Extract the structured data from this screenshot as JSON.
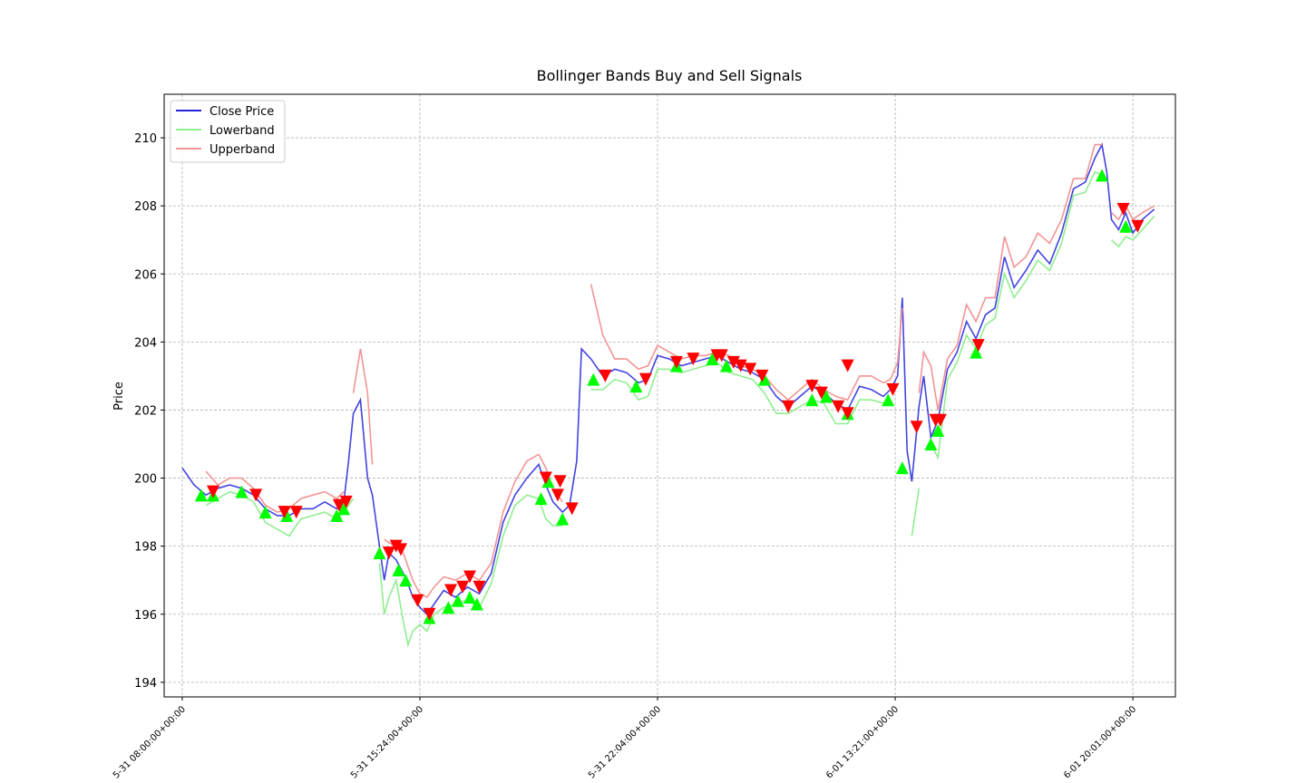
{
  "chart_data": {
    "type": "line",
    "title": "Bollinger Bands Buy and Sell Signals",
    "y_label": "Price",
    "x": [
      0,
      5,
      10,
      15,
      20,
      25,
      30,
      35,
      40,
      45,
      50,
      55,
      60,
      65,
      68,
      70,
      72,
      75,
      78,
      80,
      83,
      85,
      87,
      90,
      93,
      95,
      97,
      100,
      103,
      106,
      110,
      115,
      120,
      125,
      130,
      135,
      140,
      145,
      150,
      153,
      156,
      160,
      163,
      166,
      168,
      172,
      177,
      182,
      187,
      192,
      196,
      200,
      205,
      210,
      215,
      220,
      225,
      230,
      235,
      240,
      245,
      250,
      255,
      260,
      265,
      270,
      275,
      280,
      285,
      290,
      295,
      298,
      301,
      303,
      305,
      307,
      310,
      312,
      315,
      318,
      322,
      326,
      330,
      334,
      338,
      342,
      346,
      350,
      355,
      360,
      365,
      370,
      375,
      380,
      384,
      387,
      389,
      391,
      394,
      397,
      400,
      404,
      409
    ],
    "series": [
      {
        "name": "Close Price",
        "color": "#2222dd",
        "values": [
          200.3,
          199.8,
          199.5,
          199.7,
          199.8,
          199.7,
          199.5,
          199.1,
          198.9,
          198.9,
          199.1,
          199.1,
          199.3,
          199.1,
          199.3,
          200.5,
          201.9,
          202.3,
          200.0,
          199.5,
          198.0,
          197.0,
          197.8,
          197.6,
          197.2,
          196.9,
          196.5,
          196.2,
          196.0,
          196.3,
          196.7,
          196.5,
          196.8,
          196.6,
          197.2,
          198.7,
          199.5,
          200.0,
          200.4,
          199.8,
          199.3,
          199.0,
          199.2,
          200.5,
          203.8,
          203.5,
          203.0,
          203.2,
          203.1,
          202.8,
          202.9,
          203.6,
          203.5,
          203.3,
          203.4,
          203.5,
          203.6,
          203.4,
          203.2,
          203.1,
          202.9,
          202.4,
          202.1,
          202.4,
          202.7,
          202.5,
          202.2,
          202.0,
          202.7,
          202.6,
          202.4,
          202.6,
          203.0,
          205.3,
          200.8,
          199.9,
          202.1,
          203.0,
          201.2,
          201.7,
          203.2,
          203.7,
          204.6,
          204.1,
          204.8,
          205.0,
          206.5,
          205.6,
          206.1,
          206.7,
          206.3,
          207.2,
          208.5,
          208.7,
          209.4,
          209.8,
          209.0,
          207.6,
          207.3,
          207.8,
          207.2,
          207.6,
          207.9
        ]
      },
      {
        "name": "Lowerband",
        "color": "#90ee90",
        "values": [
          null,
          null,
          199.2,
          199.4,
          199.6,
          199.5,
          199.3,
          198.7,
          198.5,
          198.3,
          198.8,
          198.9,
          199.0,
          198.8,
          199.0,
          199.2,
          199.4,
          null,
          null,
          null,
          197.5,
          196.0,
          196.5,
          197.0,
          195.8,
          195.1,
          195.5,
          195.7,
          195.5,
          196.0,
          196.2,
          196.3,
          196.4,
          196.2,
          196.9,
          198.3,
          199.2,
          199.5,
          199.4,
          198.8,
          198.6,
          198.6,
          null,
          null,
          null,
          202.6,
          202.6,
          202.9,
          202.8,
          202.3,
          202.4,
          203.2,
          203.2,
          203.1,
          203.2,
          203.3,
          203.4,
          203.1,
          203.0,
          202.9,
          202.5,
          201.9,
          201.9,
          202.1,
          202.3,
          202.2,
          201.6,
          201.6,
          202.3,
          202.3,
          202.2,
          202.3,
          null,
          null,
          null,
          198.3,
          199.7,
          null,
          201.0,
          200.6,
          202.9,
          203.4,
          204.2,
          203.8,
          204.5,
          204.7,
          206.0,
          205.3,
          205.8,
          206.4,
          206.1,
          206.9,
          208.3,
          208.4,
          209.0,
          208.9,
          null,
          207.0,
          206.8,
          207.1,
          207.0,
          207.3,
          207.7
        ]
      },
      {
        "name": "Upperband",
        "color": "#f49494",
        "values": [
          null,
          null,
          200.2,
          199.8,
          200.0,
          200.0,
          199.7,
          199.2,
          199.0,
          199.1,
          199.4,
          199.5,
          199.6,
          199.4,
          199.6,
          null,
          202.5,
          203.8,
          202.5,
          200.4,
          null,
          198.2,
          198.1,
          198.0,
          197.8,
          197.4,
          197.0,
          196.6,
          196.5,
          196.8,
          197.1,
          197.0,
          197.2,
          197.0,
          197.5,
          199.0,
          199.9,
          200.5,
          200.7,
          200.3,
          199.7,
          199.3,
          null,
          null,
          null,
          205.7,
          204.2,
          203.5,
          203.5,
          203.2,
          203.3,
          203.9,
          203.7,
          203.5,
          203.6,
          203.6,
          203.7,
          203.6,
          203.3,
          203.2,
          203.0,
          202.6,
          202.3,
          202.6,
          202.9,
          202.6,
          202.4,
          202.3,
          203.0,
          203.0,
          202.8,
          202.9,
          203.4,
          205.0,
          null,
          null,
          202.5,
          203.7,
          203.3,
          202.0,
          203.5,
          203.9,
          205.1,
          204.6,
          205.3,
          205.3,
          207.1,
          206.2,
          206.5,
          207.2,
          206.9,
          207.6,
          208.8,
          208.8,
          209.8,
          209.8,
          null,
          207.8,
          207.6,
          208.0,
          207.6,
          207.8,
          208.0
        ]
      }
    ],
    "signals": [
      {
        "marker": "^",
        "color": "#00ff00",
        "x": [
          8,
          13,
          25,
          35,
          44,
          65,
          68,
          83,
          91,
          94,
          104,
          112,
          116,
          121,
          124,
          151,
          154,
          160,
          173,
          191,
          208,
          223,
          229,
          245,
          265,
          271,
          280,
          297,
          303,
          315,
          318,
          334,
          387,
          397
        ],
        "y": [
          199.5,
          199.5,
          199.6,
          199.0,
          198.9,
          198.9,
          199.1,
          197.8,
          197.3,
          197.0,
          195.9,
          196.2,
          196.4,
          196.5,
          196.3,
          199.4,
          199.9,
          198.8,
          202.9,
          202.7,
          203.3,
          203.5,
          203.3,
          202.9,
          202.3,
          202.4,
          201.9,
          202.3,
          200.3,
          201.0,
          201.4,
          203.7,
          208.9,
          207.4
        ]
      },
      {
        "marker": "v",
        "color": "#ff0000",
        "x": [
          13,
          31,
          43,
          48,
          66,
          69,
          87,
          90,
          92,
          99,
          104,
          113,
          118,
          121,
          125,
          153,
          159,
          158,
          164,
          178,
          195,
          208,
          215,
          225,
          227,
          232,
          235,
          239,
          244,
          255,
          265,
          269,
          276,
          280,
          280,
          299,
          309,
          317,
          319,
          335,
          396,
          402
        ],
        "y": [
          199.6,
          199.5,
          199.0,
          199.0,
          199.2,
          199.3,
          197.8,
          198.0,
          197.9,
          196.4,
          196.0,
          196.7,
          196.8,
          197.1,
          196.8,
          200.0,
          199.9,
          199.5,
          199.1,
          203.0,
          202.9,
          203.4,
          203.5,
          203.6,
          203.6,
          203.4,
          203.3,
          203.2,
          203.0,
          202.1,
          202.7,
          202.5,
          202.1,
          201.9,
          203.3,
          202.6,
          201.5,
          201.7,
          201.7,
          203.9,
          207.9,
          207.4
        ]
      }
    ],
    "xlim": [
      -7.6,
      417.9
    ],
    "ylim": [
      193.57,
      211.28
    ],
    "xticks": [
      {
        "value": 0,
        "label": "5-31 08:00:00+00:00"
      },
      {
        "value": 100,
        "label": "5-31 15:24:00+00:00"
      },
      {
        "value": 200,
        "label": "5-31 22:04:00+00:00"
      },
      {
        "value": 300,
        "label": "6-01 13:21:00+00:00"
      },
      {
        "value": 400,
        "label": "6-01 20:01:00+00:00"
      }
    ],
    "yticks": [
      194,
      196,
      198,
      200,
      202,
      204,
      206,
      208,
      210
    ],
    "grid": true,
    "legend": "upper left"
  }
}
